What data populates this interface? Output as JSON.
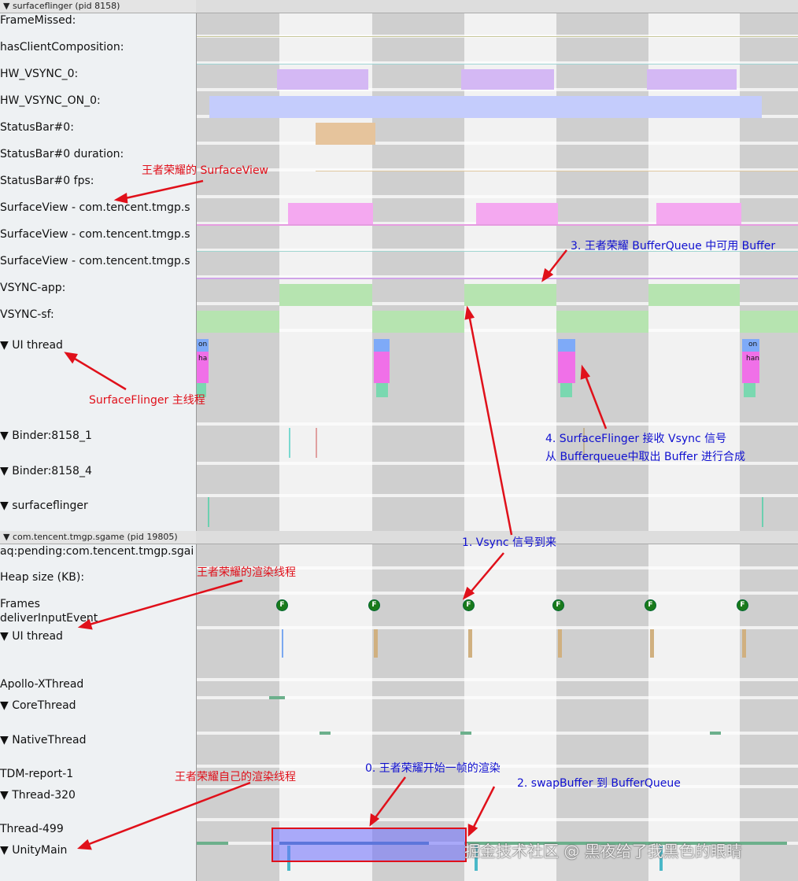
{
  "process1": {
    "title": "▼ surfaceflinger (pid 8158)",
    "tracks": [
      "FrameMissed:",
      "hasClientComposition:",
      "HW_VSYNC_0:",
      "HW_VSYNC_ON_0:",
      "StatusBar#0:",
      "StatusBar#0 duration:",
      "StatusBar#0 fps:",
      "SurfaceView - com.tencent.tmgp.s",
      "SurfaceView - com.tencent.tmgp.s",
      "SurfaceView - com.tencent.tmgp.s",
      "VSYNC-app:",
      "VSYNC-sf:",
      "▼ UI thread",
      "▼ Binder:8158_1",
      "▼ Binder:8158_4",
      "▼ surfaceflinger"
    ]
  },
  "process2": {
    "title": "▼ com.tencent.tmgp.sgame (pid 19805)",
    "tracks": [
      "aq:pending:com.tencent.tmgp.sgai",
      "Heap size (KB):",
      "Frames",
      "deliverInputEvent",
      "▼ UI thread",
      "Apollo-XThread",
      "▼ CoreThread",
      "▼ NativeThread",
      "TDM-report-1",
      "▼ Thread-320",
      "Thread-499",
      "▼ UnityMain"
    ]
  },
  "slice_tags": {
    "on": "on",
    "ha": "ha",
    "on2": "on",
    "han": "han"
  },
  "frame_marker": "F",
  "annotations": {
    "surfaceview": "王者荣耀的 SurfaceView",
    "sf_main": "SurfaceFlinger 主线程",
    "step3": "3. 王者荣耀 BufferQueue 中可用 Buffer",
    "step4a": "4. SurfaceFlinger 接收 Vsync 信号",
    "step4b": "从 Bufferqueue中取出 Buffer 进行合成",
    "step1": "1. Vsync 信号到来",
    "render_thread": "王者荣耀的渲染线程",
    "step0": "0. 王者荣耀开始一帧的渲染",
    "own_render": "王者荣耀自己的渲染线程",
    "step2": "2. swapBuffer 到 BufferQueue"
  },
  "watermark": "掘金技术社区 @ 黑夜给了我黑色的眼睛"
}
